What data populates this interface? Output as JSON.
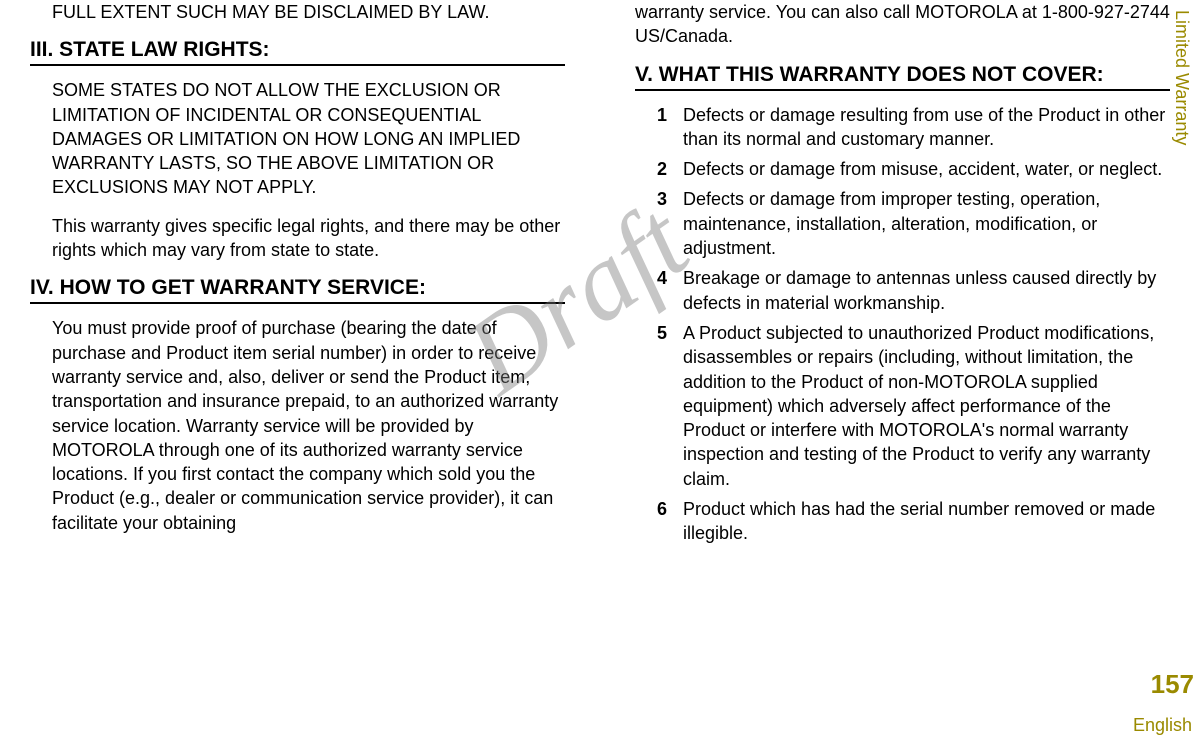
{
  "watermark": "Draft",
  "side_tab": "Limited Warranty",
  "page_number": "157",
  "language": "English",
  "left": {
    "intro_cont": "FULL EXTENT SUCH MAY BE DISCLAIMED BY LAW.",
    "h3": "III. STATE LAW RIGHTS:",
    "p3a": "SOME STATES DO NOT ALLOW THE EXCLUSION OR LIMITATION OF INCIDENTAL OR CONSEQUENTIAL DAMAGES OR LIMITATION ON HOW LONG AN IMPLIED WARRANTY LASTS, SO THE ABOVE LIMITATION OR EXCLUSIONS MAY NOT APPLY.",
    "p3b": "This warranty gives specific legal rights, and there may be other rights which may vary from state to state.",
    "h4": "IV. HOW TO GET WARRANTY SERVICE:",
    "p4": "You must provide proof of purchase (bearing the date of purchase and Product item serial number) in order to receive warranty service and, also, deliver or send the Product item, transportation and insurance prepaid, to an authorized warranty service location. Warranty service will be provided by MOTOROLA through one of its authorized warranty service locations. If you first contact the company which sold you the Product (e.g., dealer or communication service provider), it can facilitate your obtaining"
  },
  "right": {
    "p4_cont": "warranty service. You can also call MOTOROLA at 1-800-927-2744 US/Canada.",
    "h5": "V. WHAT THIS WARRANTY DOES NOT COVER:",
    "items": [
      {
        "n": "1",
        "t": "Defects or damage resulting from use of the Product in other than its normal and customary manner."
      },
      {
        "n": "2",
        "t": "Defects or damage from misuse, accident, water, or neglect."
      },
      {
        "n": "3",
        "t": "Defects or damage from improper testing, operation, maintenance, installation, alteration, modification, or adjustment."
      },
      {
        "n": "4",
        "t": "Breakage or damage to antennas unless caused directly by defects in material workmanship."
      },
      {
        "n": "5",
        "t": "A Product subjected to unauthorized Product modifications, disassembles or repairs (including, without limitation, the addition to the Product of non-MOTOROLA supplied equipment) which adversely affect performance of the Product or interfere with MOTOROLA's normal warranty inspection and testing of the Product to verify any warranty claim."
      },
      {
        "n": "6",
        "t": "Product which has had the serial number removed or made illegible."
      }
    ]
  }
}
